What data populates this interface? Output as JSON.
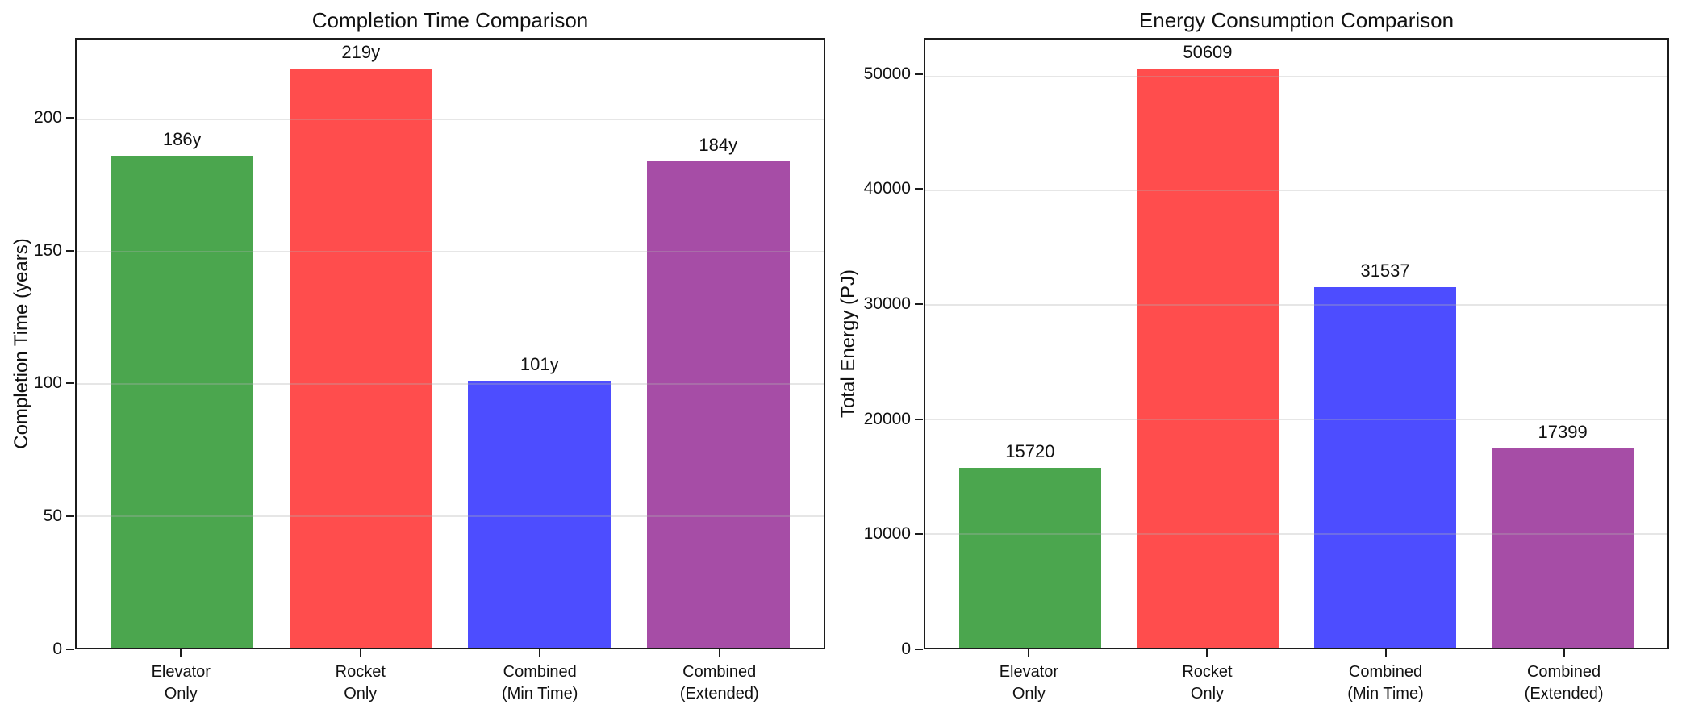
{
  "figure": {
    "background": "#ffffff",
    "text_color": "#111111",
    "spine_color": "#1c1c1c",
    "grid_color": "rgba(176,176,176,0.32)"
  },
  "chart_data": [
    {
      "type": "bar",
      "title": "Completion Time Comparison",
      "xlabel": "",
      "ylabel": "Completion Time (years)",
      "categories": [
        "Elevator\nOnly",
        "Rocket\nOnly",
        "Combined\n(Min Time)",
        "Combined\n(Extended)"
      ],
      "values": [
        186,
        219,
        101,
        184
      ],
      "bar_labels": [
        "186y",
        "219y",
        "101y",
        "184y"
      ],
      "colors": [
        "#4ba64e",
        "#ff4d4d",
        "#4d4dff",
        "#a64da6"
      ],
      "yticks": [
        0,
        50,
        100,
        150,
        200
      ],
      "ylim": [
        0,
        230
      ],
      "grid": true,
      "legend": "none",
      "bar_width_frac": 0.8
    },
    {
      "type": "bar",
      "title": "Energy Consumption Comparison",
      "xlabel": "",
      "ylabel": "Total Energy (PJ)",
      "categories": [
        "Elevator\nOnly",
        "Rocket\nOnly",
        "Combined\n(Min Time)",
        "Combined\n(Extended)"
      ],
      "values": [
        15720,
        50609,
        31537,
        17399
      ],
      "bar_labels": [
        "15720",
        "50609",
        "31537",
        "17399"
      ],
      "colors": [
        "#4ba64e",
        "#ff4d4d",
        "#4d4dff",
        "#a64da6"
      ],
      "yticks": [
        0,
        10000,
        20000,
        30000,
        40000,
        50000
      ],
      "ylim": [
        0,
        53140
      ],
      "grid": true,
      "legend": "none",
      "bar_width_frac": 0.8
    }
  ]
}
